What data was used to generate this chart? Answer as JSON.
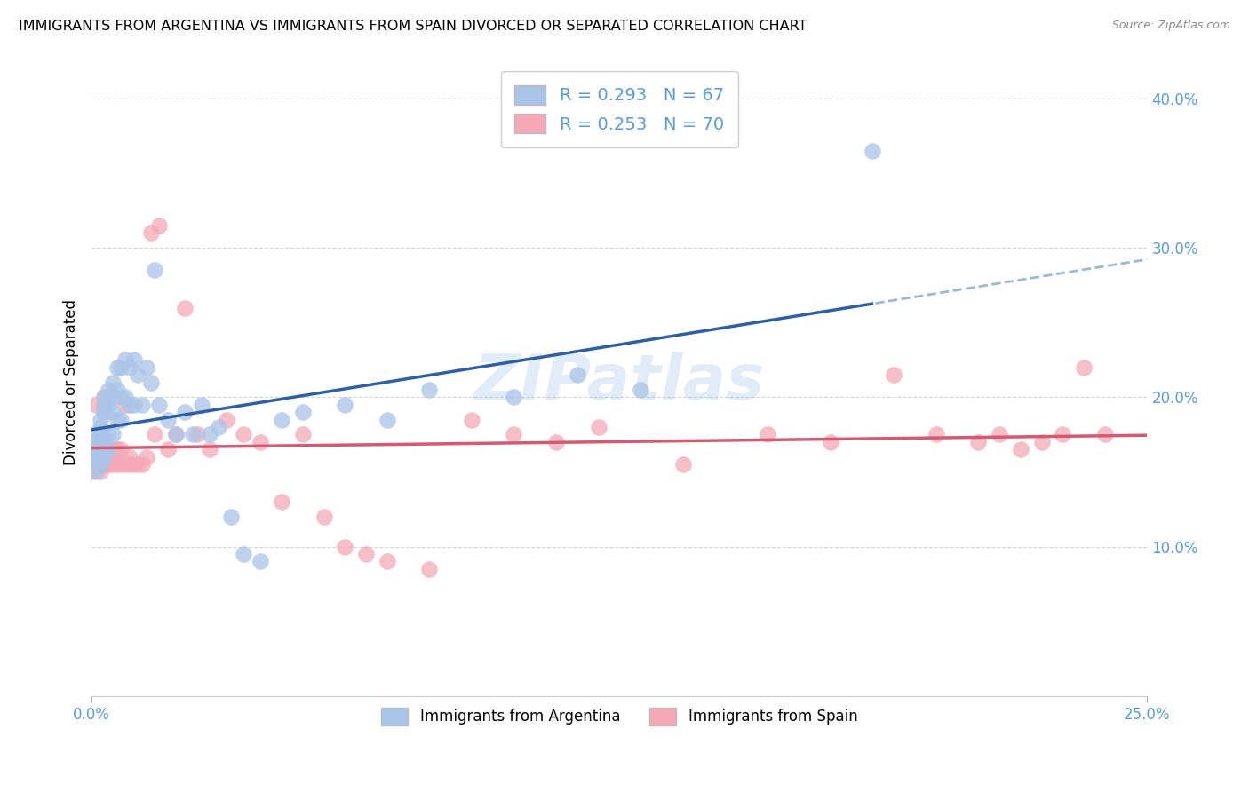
{
  "title": "IMMIGRANTS FROM ARGENTINA VS IMMIGRANTS FROM SPAIN DIVORCED OR SEPARATED CORRELATION CHART",
  "source": "Source: ZipAtlas.com",
  "ylabel": "Divorced or Separated",
  "xlim": [
    0.0,
    0.25
  ],
  "ylim": [
    0.0,
    0.42
  ],
  "yticks": [
    0.0,
    0.1,
    0.2,
    0.3,
    0.4
  ],
  "ytick_labels_right": [
    "",
    "10.0%",
    "20.0%",
    "30.0%",
    "40.0%"
  ],
  "xtick_positions": [
    0.0,
    0.25
  ],
  "xtick_labels": [
    "0.0%",
    "25.0%"
  ],
  "tick_color": "#5b9bd5",
  "grid_color": "#cccccc",
  "background_color": "#ffffff",
  "argentina_color": "#aac4e8",
  "spain_color": "#f4a8b8",
  "argentina_line_color": "#2e5fa3",
  "spain_line_color": "#d45a72",
  "argentina_dash_color": "#9ab8d8",
  "argentina_R": 0.293,
  "argentina_N": 67,
  "spain_R": 0.253,
  "spain_N": 70,
  "watermark": "ZIPatlas",
  "legend_label_1": "Immigrants from Argentina",
  "legend_label_2": "Immigrants from Spain",
  "argentina_x": [
    0.0,
    0.0,
    0.001,
    0.001,
    0.001,
    0.001,
    0.001,
    0.001,
    0.001,
    0.002,
    0.002,
    0.002,
    0.002,
    0.002,
    0.002,
    0.002,
    0.003,
    0.003,
    0.003,
    0.003,
    0.003,
    0.003,
    0.004,
    0.004,
    0.004,
    0.004,
    0.005,
    0.005,
    0.005,
    0.005,
    0.006,
    0.006,
    0.006,
    0.007,
    0.007,
    0.007,
    0.008,
    0.008,
    0.009,
    0.009,
    0.01,
    0.01,
    0.011,
    0.012,
    0.013,
    0.014,
    0.015,
    0.016,
    0.018,
    0.02,
    0.022,
    0.024,
    0.026,
    0.028,
    0.03,
    0.033,
    0.036,
    0.04,
    0.045,
    0.05,
    0.06,
    0.07,
    0.08,
    0.1,
    0.115,
    0.13,
    0.185
  ],
  "argentina_y": [
    0.155,
    0.16,
    0.175,
    0.165,
    0.155,
    0.15,
    0.17,
    0.165,
    0.16,
    0.18,
    0.175,
    0.17,
    0.165,
    0.185,
    0.16,
    0.155,
    0.2,
    0.195,
    0.19,
    0.175,
    0.165,
    0.16,
    0.205,
    0.195,
    0.175,
    0.165,
    0.21,
    0.2,
    0.19,
    0.175,
    0.22,
    0.205,
    0.185,
    0.22,
    0.2,
    0.185,
    0.225,
    0.2,
    0.22,
    0.195,
    0.225,
    0.195,
    0.215,
    0.195,
    0.22,
    0.21,
    0.285,
    0.195,
    0.185,
    0.175,
    0.19,
    0.175,
    0.195,
    0.175,
    0.18,
    0.12,
    0.095,
    0.09,
    0.185,
    0.19,
    0.195,
    0.185,
    0.205,
    0.2,
    0.215,
    0.205,
    0.365
  ],
  "spain_x": [
    0.0,
    0.0,
    0.001,
    0.001,
    0.001,
    0.001,
    0.001,
    0.001,
    0.002,
    0.002,
    0.002,
    0.002,
    0.002,
    0.003,
    0.003,
    0.003,
    0.003,
    0.004,
    0.004,
    0.004,
    0.004,
    0.005,
    0.005,
    0.005,
    0.006,
    0.006,
    0.007,
    0.007,
    0.008,
    0.008,
    0.009,
    0.009,
    0.01,
    0.011,
    0.012,
    0.013,
    0.014,
    0.015,
    0.016,
    0.018,
    0.02,
    0.022,
    0.025,
    0.028,
    0.032,
    0.036,
    0.04,
    0.045,
    0.05,
    0.055,
    0.06,
    0.065,
    0.07,
    0.08,
    0.09,
    0.1,
    0.11,
    0.12,
    0.14,
    0.16,
    0.175,
    0.19,
    0.2,
    0.21,
    0.215,
    0.22,
    0.225,
    0.23,
    0.235,
    0.24
  ],
  "spain_y": [
    0.15,
    0.155,
    0.155,
    0.16,
    0.155,
    0.165,
    0.155,
    0.195,
    0.16,
    0.155,
    0.165,
    0.155,
    0.15,
    0.16,
    0.155,
    0.195,
    0.2,
    0.165,
    0.155,
    0.16,
    0.155,
    0.165,
    0.155,
    0.16,
    0.155,
    0.165,
    0.165,
    0.155,
    0.195,
    0.155,
    0.155,
    0.16,
    0.155,
    0.155,
    0.155,
    0.16,
    0.31,
    0.175,
    0.315,
    0.165,
    0.175,
    0.26,
    0.175,
    0.165,
    0.185,
    0.175,
    0.17,
    0.13,
    0.175,
    0.12,
    0.1,
    0.095,
    0.09,
    0.085,
    0.185,
    0.175,
    0.17,
    0.18,
    0.155,
    0.175,
    0.17,
    0.215,
    0.175,
    0.17,
    0.175,
    0.165,
    0.17,
    0.175,
    0.22,
    0.175
  ]
}
